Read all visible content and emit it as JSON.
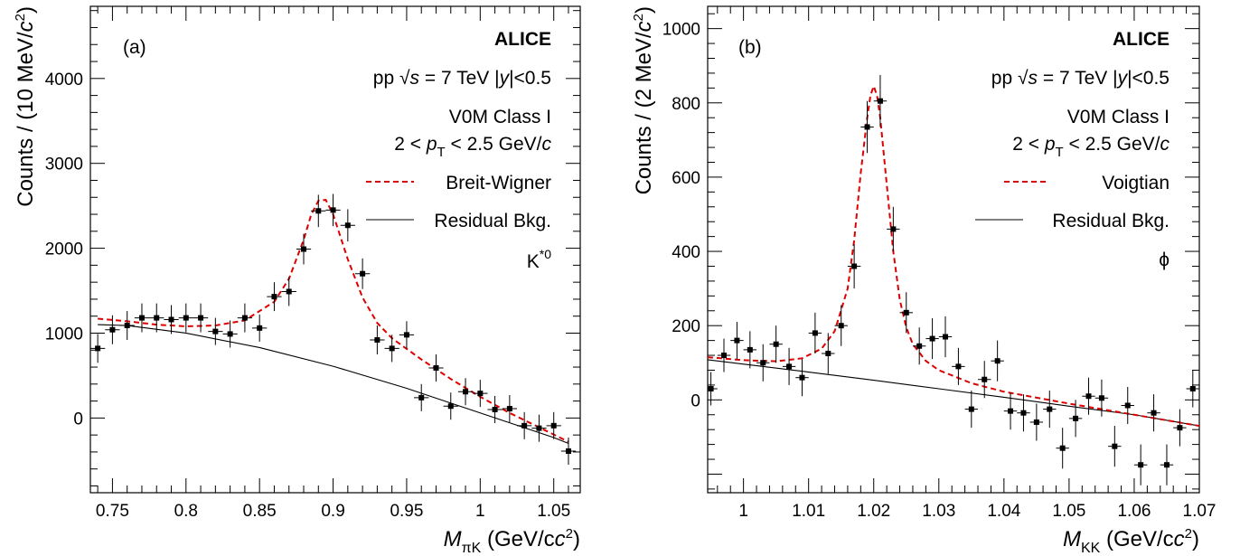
{
  "chart_data": [
    {
      "type": "scatter",
      "panel_label": "(a)",
      "experiment": "ALICE",
      "system_prefix": "pp",
      "energy_text": "= 7 TeV",
      "rapidity_text": "|<0.5",
      "class_text": "V0M Class I",
      "pt_prefix": "2 <",
      "pt_suffix": "< 2.5 GeV/",
      "fit_label": "Breit-Wigner",
      "bkg_label": "Residual Bkg.",
      "particle_label": "K*0",
      "particle_base": "K",
      "particle_sup": "*0",
      "xlabel": "M_πK (GeV/c²)",
      "xlabel_var": "M",
      "xlabel_sub": "πK",
      "xlabel_unit": "(GeV/c",
      "ylabel": "Counts / (10 MeV/c²)",
      "ylabel_text": "Counts / (10 MeV/",
      "xlim": [
        0.735,
        1.068
      ],
      "ylim": [
        -880,
        4850
      ],
      "xticks": [
        0.75,
        0.8,
        0.85,
        0.9,
        0.95,
        1.0,
        1.05
      ],
      "xtick_labels": [
        "0.75",
        "0.8",
        "0.85",
        "0.9",
        "0.95",
        "1",
        "1.05"
      ],
      "yticks": [
        0,
        1000,
        2000,
        3000,
        4000
      ],
      "ytick_labels": [
        "0",
        "1000",
        "2000",
        "3000",
        "4000"
      ],
      "bin_width": 0.01,
      "points": {
        "x": [
          0.74,
          0.75,
          0.76,
          0.77,
          0.78,
          0.79,
          0.8,
          0.81,
          0.82,
          0.83,
          0.84,
          0.85,
          0.86,
          0.87,
          0.88,
          0.89,
          0.9,
          0.91,
          0.92,
          0.93,
          0.94,
          0.95,
          0.96,
          0.97,
          0.98,
          0.99,
          1.0,
          1.01,
          1.02,
          1.03,
          1.04,
          1.05,
          1.06
        ],
        "y": [
          820,
          1040,
          1090,
          1180,
          1180,
          1160,
          1180,
          1180,
          1020,
          990,
          1180,
          1060,
          1430,
          1490,
          1990,
          2440,
          2450,
          2270,
          1700,
          920,
          820,
          980,
          240,
          590,
          140,
          310,
          290,
          100,
          110,
          -90,
          -120,
          -90,
          -390
        ],
        "yerr": [
          170,
          170,
          170,
          170,
          170,
          170,
          170,
          170,
          160,
          160,
          170,
          160,
          170,
          170,
          180,
          190,
          190,
          190,
          180,
          170,
          160,
          160,
          160,
          160,
          160,
          160,
          160,
          160,
          160,
          160,
          160,
          160,
          160
        ]
      },
      "bkg_curve": {
        "x": [
          0.74,
          0.76,
          0.8,
          0.85,
          0.9,
          0.95,
          1.0,
          1.05,
          1.06
        ],
        "y": [
          1100,
          1090,
          1000,
          830,
          610,
          350,
          60,
          -230,
          -300
        ]
      },
      "fit_curve": {
        "x": [
          0.74,
          0.76,
          0.78,
          0.8,
          0.82,
          0.84,
          0.86,
          0.87,
          0.88,
          0.885,
          0.89,
          0.895,
          0.9,
          0.91,
          0.92,
          0.93,
          0.94,
          0.96,
          0.98,
          1.0,
          1.02,
          1.04,
          1.06
        ],
        "y": [
          1170,
          1140,
          1100,
          1080,
          1090,
          1150,
          1370,
          1640,
          2100,
          2390,
          2560,
          2570,
          2400,
          1870,
          1420,
          1120,
          940,
          690,
          460,
          250,
          60,
          -110,
          -280
        ]
      }
    },
    {
      "type": "scatter",
      "panel_label": "(b)",
      "experiment": "ALICE",
      "system_prefix": "pp",
      "energy_text": "= 7 TeV",
      "rapidity_text": "|<0.5",
      "class_text": "V0M Class I",
      "pt_prefix": "2 <",
      "pt_suffix": "< 2.5 GeV/",
      "fit_label": "Voigtian",
      "bkg_label": "Residual Bkg.",
      "particle_label": "ϕ",
      "xlabel": "M_KK (GeV/c²)",
      "xlabel_var": "M",
      "xlabel_sub": "KK",
      "xlabel_unit": "(GeV/c",
      "ylabel": "Counts / (2 MeV/c²)",
      "ylabel_text": "Counts / (2 MeV/",
      "xlim": [
        0.9945,
        1.07
      ],
      "ylim": [
        -250,
        1060
      ],
      "xticks": [
        1.0,
        1.01,
        1.02,
        1.03,
        1.04,
        1.05,
        1.06,
        1.07
      ],
      "xtick_labels": [
        "1",
        "1.01",
        "1.02",
        "1.03",
        "1.04",
        "1.05",
        "1.06",
        "1.07"
      ],
      "yticks": [
        0,
        200,
        400,
        600,
        800,
        1000
      ],
      "ytick_labels": [
        "0",
        "200",
        "400",
        "600",
        "800",
        "1000"
      ],
      "bin_width": 0.002,
      "points": {
        "x": [
          0.995,
          0.997,
          0.999,
          1.001,
          1.003,
          1.005,
          1.007,
          1.009,
          1.011,
          1.013,
          1.015,
          1.017,
          1.019,
          1.021,
          1.023,
          1.025,
          1.027,
          1.029,
          1.031,
          1.033,
          1.035,
          1.037,
          1.039,
          1.041,
          1.043,
          1.045,
          1.047,
          1.049,
          1.051,
          1.053,
          1.055,
          1.057,
          1.059,
          1.061,
          1.063,
          1.065,
          1.067,
          1.069
        ],
        "y": [
          30,
          120,
          160,
          135,
          100,
          150,
          90,
          60,
          180,
          125,
          200,
          360,
          735,
          805,
          460,
          235,
          145,
          165,
          170,
          90,
          -25,
          55,
          105,
          -30,
          -35,
          -60,
          -25,
          -130,
          -50,
          10,
          5,
          -125,
          -15,
          -175,
          -35,
          -175,
          -75,
          30
        ],
        "yerr": [
          45,
          45,
          50,
          50,
          50,
          50,
          50,
          50,
          55,
          55,
          55,
          60,
          70,
          70,
          60,
          55,
          50,
          55,
          55,
          50,
          50,
          50,
          55,
          50,
          50,
          50,
          50,
          55,
          50,
          50,
          50,
          55,
          50,
          55,
          50,
          55,
          50,
          50
        ]
      },
      "bkg_curve": {
        "x": [
          0.9945,
          1.01,
          1.02,
          1.03,
          1.04,
          1.05,
          1.06,
          1.07
        ],
        "y": [
          108,
          75,
          53,
          30,
          7,
          -17,
          -40,
          -70
        ]
      },
      "fit_curve": {
        "x": [
          0.9945,
          1.0,
          1.005,
          1.009,
          1.012,
          1.014,
          1.016,
          1.017,
          1.018,
          1.019,
          1.0195,
          1.02,
          1.0205,
          1.021,
          1.022,
          1.023,
          1.024,
          1.025,
          1.026,
          1.028,
          1.03,
          1.035,
          1.04,
          1.05,
          1.06,
          1.07
        ],
        "y": [
          115,
          107,
          104,
          112,
          138,
          185,
          300,
          430,
          610,
          760,
          820,
          845,
          820,
          760,
          580,
          400,
          270,
          195,
          150,
          105,
          80,
          45,
          22,
          -10,
          -40,
          -70
        ]
      }
    }
  ]
}
